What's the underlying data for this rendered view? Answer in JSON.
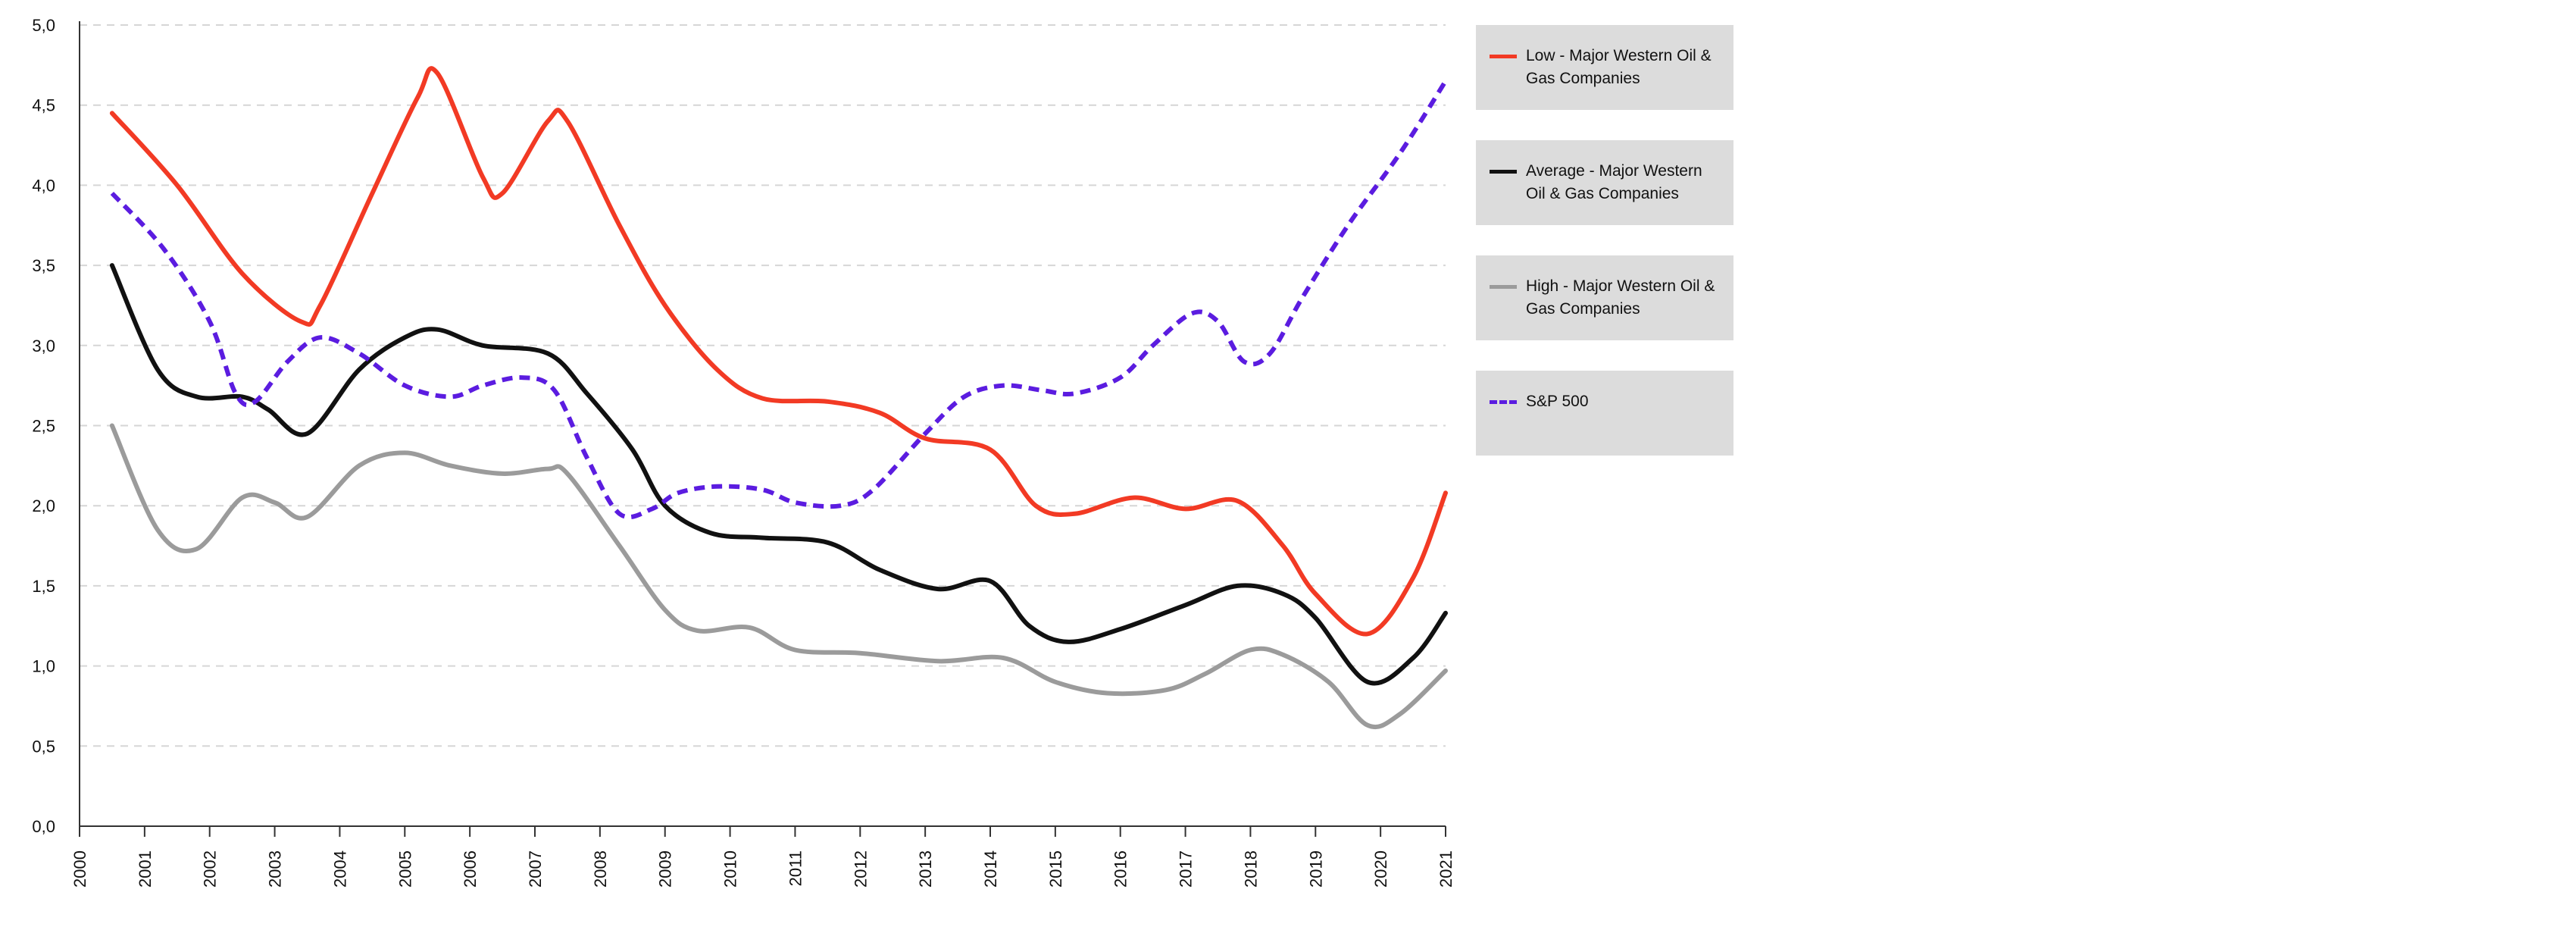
{
  "chart_data": {
    "type": "line",
    "title": "",
    "xlabel": "",
    "ylabel": "",
    "x": [
      "2000",
      "2001",
      "2002",
      "2003",
      "2004",
      "2005",
      "2006",
      "2007",
      "2008",
      "2009",
      "2010",
      "2011",
      "2012",
      "2013",
      "2014",
      "2015",
      "2016",
      "2017",
      "2018",
      "2019",
      "2020",
      "2021"
    ],
    "y_ticks": [
      "0,0",
      "0,5",
      "1,0",
      "1,5",
      "2,0",
      "2,5",
      "3,0",
      "3,5",
      "4,0",
      "4,5",
      "5,0"
    ],
    "ylim": [
      0,
      5
    ],
    "grid": "horizontal dashed",
    "legend_position": "right",
    "series": [
      {
        "name": "Low - Major Western Oil & Gas Companies",
        "color": "#f23a24",
        "style": "solid",
        "points": [
          [
            2000.5,
            4.45
          ],
          [
            2001.5,
            4.0
          ],
          [
            2002.5,
            3.45
          ],
          [
            2003.4,
            3.15
          ],
          [
            2003.7,
            3.25
          ],
          [
            2004.5,
            3.95
          ],
          [
            2005.2,
            4.55
          ],
          [
            2005.5,
            4.7
          ],
          [
            2006.2,
            4.05
          ],
          [
            2006.5,
            3.95
          ],
          [
            2007.2,
            4.4
          ],
          [
            2007.5,
            4.4
          ],
          [
            2008.3,
            3.75
          ],
          [
            2009.0,
            3.25
          ],
          [
            2009.8,
            2.85
          ],
          [
            2010.5,
            2.67
          ],
          [
            2011.5,
            2.65
          ],
          [
            2012.3,
            2.58
          ],
          [
            2013.0,
            2.42
          ],
          [
            2014.0,
            2.35
          ],
          [
            2014.7,
            2.0
          ],
          [
            2015.3,
            1.95
          ],
          [
            2016.2,
            2.05
          ],
          [
            2017.0,
            1.98
          ],
          [
            2017.8,
            2.03
          ],
          [
            2018.5,
            1.75
          ],
          [
            2019.0,
            1.45
          ],
          [
            2019.8,
            1.2
          ],
          [
            2020.5,
            1.55
          ],
          [
            2021.0,
            2.08
          ]
        ]
      },
      {
        "name": "Average - Major Western Oil & Gas Companies",
        "color": "#111111",
        "style": "solid",
        "points": [
          [
            2000.5,
            3.5
          ],
          [
            2001.2,
            2.85
          ],
          [
            2001.8,
            2.68
          ],
          [
            2002.5,
            2.68
          ],
          [
            2002.9,
            2.6
          ],
          [
            2003.5,
            2.45
          ],
          [
            2004.3,
            2.85
          ],
          [
            2005.0,
            3.05
          ],
          [
            2005.5,
            3.1
          ],
          [
            2006.2,
            3.0
          ],
          [
            2007.2,
            2.95
          ],
          [
            2007.8,
            2.7
          ],
          [
            2008.5,
            2.35
          ],
          [
            2009.0,
            2.0
          ],
          [
            2009.7,
            1.83
          ],
          [
            2010.5,
            1.8
          ],
          [
            2011.5,
            1.77
          ],
          [
            2012.3,
            1.6
          ],
          [
            2013.2,
            1.48
          ],
          [
            2014.0,
            1.53
          ],
          [
            2014.6,
            1.25
          ],
          [
            2015.2,
            1.15
          ],
          [
            2016.0,
            1.23
          ],
          [
            2017.0,
            1.38
          ],
          [
            2017.8,
            1.5
          ],
          [
            2018.5,
            1.45
          ],
          [
            2019.0,
            1.3
          ],
          [
            2019.8,
            0.9
          ],
          [
            2020.5,
            1.05
          ],
          [
            2021.0,
            1.33
          ]
        ]
      },
      {
        "name": "High - Major Western Oil & Gas Companies",
        "color": "#9b9b9b",
        "style": "solid",
        "points": [
          [
            2000.5,
            2.5
          ],
          [
            2001.2,
            1.85
          ],
          [
            2001.8,
            1.73
          ],
          [
            2002.5,
            2.05
          ],
          [
            2003.0,
            2.02
          ],
          [
            2003.5,
            1.93
          ],
          [
            2004.3,
            2.25
          ],
          [
            2005.0,
            2.33
          ],
          [
            2005.7,
            2.25
          ],
          [
            2006.5,
            2.2
          ],
          [
            2007.2,
            2.23
          ],
          [
            2007.5,
            2.2
          ],
          [
            2008.3,
            1.75
          ],
          [
            2009.0,
            1.35
          ],
          [
            2009.5,
            1.22
          ],
          [
            2010.3,
            1.24
          ],
          [
            2011.0,
            1.1
          ],
          [
            2012.0,
            1.08
          ],
          [
            2013.2,
            1.03
          ],
          [
            2014.2,
            1.05
          ],
          [
            2015.0,
            0.9
          ],
          [
            2015.8,
            0.83
          ],
          [
            2016.7,
            0.85
          ],
          [
            2017.3,
            0.95
          ],
          [
            2018.0,
            1.1
          ],
          [
            2018.5,
            1.07
          ],
          [
            2019.2,
            0.9
          ],
          [
            2019.8,
            0.63
          ],
          [
            2020.3,
            0.7
          ],
          [
            2021.0,
            0.97
          ]
        ]
      },
      {
        "name": "S&P 500",
        "color": "#5b1ce0",
        "style": "dashed",
        "points": [
          [
            2000.5,
            3.95
          ],
          [
            2001.3,
            3.6
          ],
          [
            2002.0,
            3.15
          ],
          [
            2002.4,
            2.7
          ],
          [
            2002.7,
            2.65
          ],
          [
            2003.2,
            2.9
          ],
          [
            2003.7,
            3.05
          ],
          [
            2004.3,
            2.95
          ],
          [
            2005.0,
            2.75
          ],
          [
            2005.7,
            2.68
          ],
          [
            2006.2,
            2.75
          ],
          [
            2006.8,
            2.8
          ],
          [
            2007.3,
            2.72
          ],
          [
            2007.8,
            2.3
          ],
          [
            2008.3,
            1.95
          ],
          [
            2008.8,
            1.98
          ],
          [
            2009.2,
            2.08
          ],
          [
            2009.8,
            2.12
          ],
          [
            2010.5,
            2.1
          ],
          [
            2011.0,
            2.02
          ],
          [
            2011.7,
            2.0
          ],
          [
            2012.2,
            2.1
          ],
          [
            2013.0,
            2.45
          ],
          [
            2013.6,
            2.68
          ],
          [
            2014.2,
            2.75
          ],
          [
            2014.8,
            2.72
          ],
          [
            2015.3,
            2.7
          ],
          [
            2016.0,
            2.8
          ],
          [
            2016.5,
            3.0
          ],
          [
            2017.1,
            3.2
          ],
          [
            2017.5,
            3.15
          ],
          [
            2017.9,
            2.9
          ],
          [
            2018.3,
            2.95
          ],
          [
            2018.8,
            3.3
          ],
          [
            2019.5,
            3.75
          ],
          [
            2020.3,
            4.2
          ],
          [
            2021.0,
            4.65
          ]
        ]
      }
    ]
  }
}
